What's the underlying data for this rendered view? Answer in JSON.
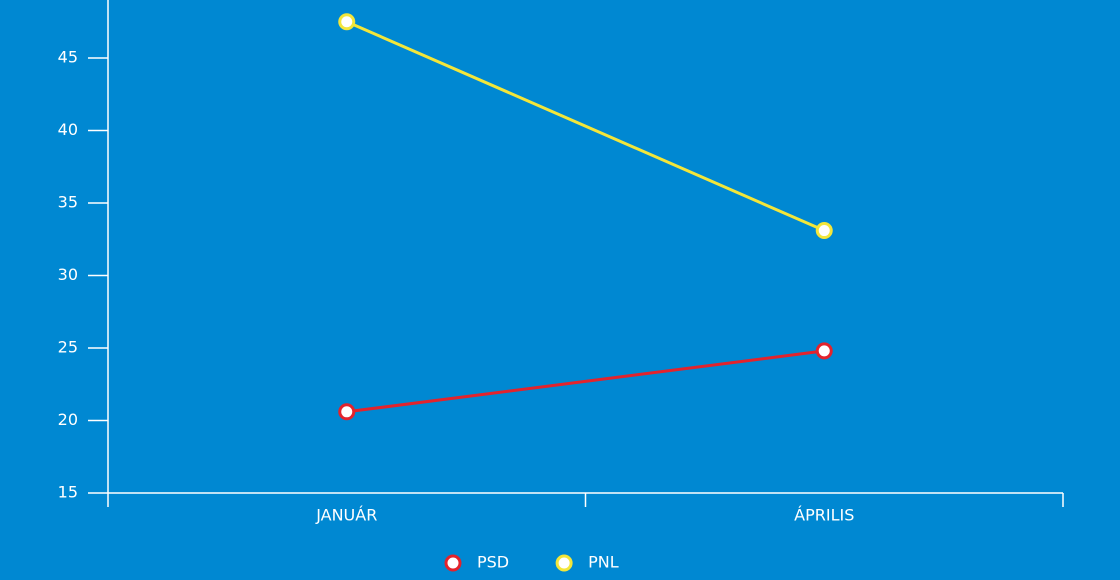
{
  "chart_data": {
    "type": "line",
    "categories": [
      "JANUÁR",
      "ÁPRILIS"
    ],
    "series": [
      {
        "name": "PSD",
        "color": "#e3232c",
        "values": [
          20.6,
          24.8
        ]
      },
      {
        "name": "PNL",
        "color": "#f3e63a",
        "values": [
          47.5,
          33.1
        ]
      }
    ],
    "ylim": [
      15,
      49
    ],
    "yticks": [
      15,
      20,
      25,
      30,
      35,
      40,
      45
    ],
    "legend": "bottom",
    "background": "#0088d2"
  }
}
